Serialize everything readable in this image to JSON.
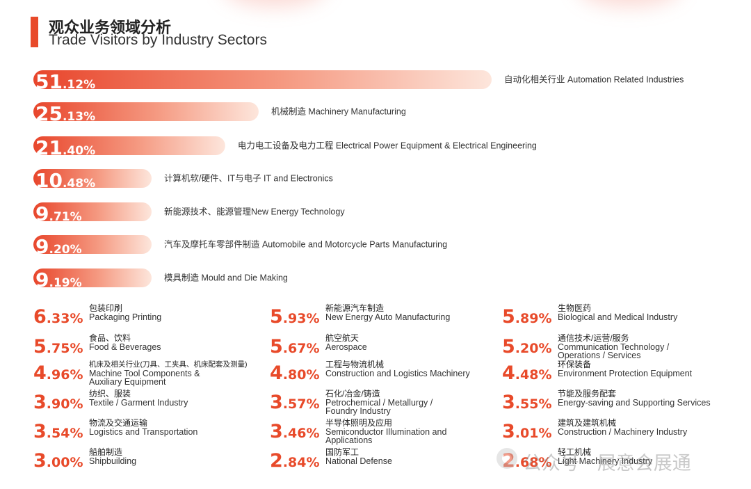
{
  "title": {
    "cn": "观众业务领域分析",
    "en": "Trade Visitors by Industry Sectors"
  },
  "chart_data": {
    "type": "bar",
    "title": "观众业务领域分析 Trade Visitors by Industry Sectors",
    "unit": "%",
    "bars": [
      {
        "value": 51.12,
        "int": "51",
        "dec": ".12%",
        "label": "自动化相关行业 Automation Related Industries"
      },
      {
        "value": 25.13,
        "int": "25",
        "dec": ".13%",
        "label": "机械制造 Machinery Manufacturing"
      },
      {
        "value": 21.4,
        "int": "21",
        "dec": ".40%",
        "label": "电力电工设备及电力工程 Electrical Power Equipment & Electrical Engineering"
      },
      {
        "value": 10.48,
        "int": "10",
        "dec": ".48%",
        "label": "计算机软/硬件、IT与电子 IT and Electronics"
      },
      {
        "value": 9.71,
        "int": "9",
        "dec": ".71%",
        "label": "新能源技术、能源管理New Energy Technology"
      },
      {
        "value": 9.2,
        "int": "9",
        "dec": ".20%",
        "label": "汽车及摩托车零部件制造 Automobile and Motorcycle Parts Manufacturing"
      },
      {
        "value": 9.19,
        "int": "9",
        "dec": ".19%",
        "label": "模具制造 Mould and Die Making"
      }
    ],
    "grid": [
      {
        "value": 6.33,
        "int": "6",
        "dec": ".33%",
        "cn": "包装印刷",
        "en": [
          "Packaging Printing"
        ]
      },
      {
        "value": 5.93,
        "int": "5",
        "dec": ".93%",
        "cn": "新能源汽车制造",
        "en": [
          "New Energy Auto Manufacturing"
        ]
      },
      {
        "value": 5.89,
        "int": "5",
        "dec": ".89%",
        "cn": "生物医药",
        "en": [
          "Biological and Medical Industry"
        ]
      },
      {
        "value": 5.75,
        "int": "5",
        "dec": ".75%",
        "cn": "食品、饮料",
        "en": [
          "Food & Beverages"
        ]
      },
      {
        "value": 5.67,
        "int": "5",
        "dec": ".67%",
        "cn": "航空航天",
        "en": [
          "Aerospace"
        ]
      },
      {
        "value": 5.2,
        "int": "5",
        "dec": ".20%",
        "cn": "通信技术/运营/服务",
        "en": [
          "Communication Technology /",
          "Operations / Services"
        ]
      },
      {
        "value": 4.96,
        "int": "4",
        "dec": ".96%",
        "cn": "机床及相关行业(刀具、工夹具、机床配套及测量)",
        "en": [
          "Machine Tool Components &",
          "Auxiliary Equipment"
        ]
      },
      {
        "value": 4.8,
        "int": "4",
        "dec": ".80%",
        "cn": "工程与物流机械",
        "en": [
          "Construction and Logistics Machinery"
        ]
      },
      {
        "value": 4.48,
        "int": "4",
        "dec": ".48%",
        "cn": "环保装备",
        "en": [
          "Environment Protection Equipment"
        ]
      },
      {
        "value": 3.9,
        "int": "3",
        "dec": ".90%",
        "cn": "纺织、服装",
        "en": [
          "Textile / Garment Industry"
        ]
      },
      {
        "value": 3.57,
        "int": "3",
        "dec": ".57%",
        "cn": "石化/冶金/铸造",
        "en": [
          "Petrochemical / Metallurgy /",
          "Foundry Industry"
        ]
      },
      {
        "value": 3.55,
        "int": "3",
        "dec": ".55%",
        "cn": "节能及服务配套",
        "en": [
          "Energy-saving and Supporting Services"
        ]
      },
      {
        "value": 3.54,
        "int": "3",
        "dec": ".54%",
        "cn": "物流及交通运输",
        "en": [
          "Logistics and Transportation"
        ]
      },
      {
        "value": 3.46,
        "int": "3",
        "dec": ".46%",
        "cn": "半导体照明及应用",
        "en": [
          "Semiconductor Illumination and",
          "Applications"
        ]
      },
      {
        "value": 3.01,
        "int": "3",
        "dec": ".01%",
        "cn": "建筑及建筑机械",
        "en": [
          "Construction / Machinery Industry"
        ]
      },
      {
        "value": 3.0,
        "int": "3",
        "dec": ".00%",
        "cn": "船舶制造",
        "en": [
          "Shipbuilding"
        ]
      },
      {
        "value": 2.84,
        "int": "2",
        "dec": ".84%",
        "cn": "国防军工",
        "en": [
          "National Defense"
        ]
      },
      {
        "value": 2.68,
        "int": "2",
        "dec": ".68%",
        "cn": "轻工机械",
        "en": [
          "Light Machinery Industry"
        ]
      }
    ]
  },
  "watermark": {
    "text": "公众号 · 展意会展通",
    "icon": "wechat-icon"
  },
  "colors": {
    "accent": "#e84a2a",
    "bar_start": "#e8462c",
    "bar_end": "#fde6dc"
  }
}
